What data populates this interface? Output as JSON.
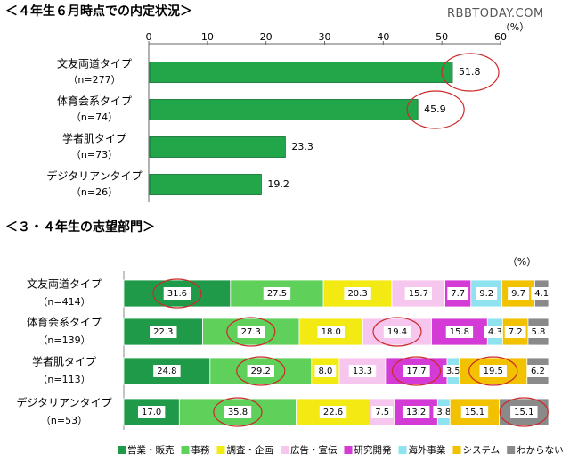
{
  "watermark": "RBBTODAY.COM",
  "chart_data": [
    {
      "type": "bar",
      "orientation": "horizontal",
      "title": "＜４年生６月時点での内定状況＞",
      "unit_label": "（%）",
      "xlim": [
        0,
        60
      ],
      "ticks": [
        0,
        10,
        20,
        30,
        40,
        50,
        60
      ],
      "grid": false,
      "bar_color": "#22a64a",
      "categories": [
        {
          "name": "文友両道タイプ",
          "n": "（n=277）"
        },
        {
          "name": "体育会系タイプ",
          "n": "（n=74）"
        },
        {
          "name": "学者肌タイプ",
          "n": "（n=73）"
        },
        {
          "name": "デジタリアンタイプ",
          "n": "（n=26）"
        }
      ],
      "values": [
        51.8,
        45.9,
        23.3,
        19.2
      ],
      "value_labels": [
        "51.8",
        "45.9",
        "23.3",
        "19.2"
      ],
      "circled": [
        0,
        1
      ]
    },
    {
      "type": "bar",
      "orientation": "horizontal",
      "stacked": true,
      "percent": true,
      "title": "＜３・４年生の志望部門＞",
      "unit_label": "（%）",
      "legend_position": "bottom",
      "categories": [
        {
          "name": "文友両道タイプ",
          "n": "（n=414）"
        },
        {
          "name": "体育会系タイプ",
          "n": "（n=139）"
        },
        {
          "name": "学者肌タイプ",
          "n": "（n=113）"
        },
        {
          "name": "デジタリアンタイプ",
          "n": "（n=53）"
        }
      ],
      "series": [
        {
          "name": "営業・販売",
          "color": "#1e9a48",
          "values": [
            31.6,
            22.3,
            24.8,
            17.0
          ],
          "labels": [
            "31.6",
            "22.3",
            "24.8",
            "17.0"
          ]
        },
        {
          "name": "事務",
          "color": "#5fd05a",
          "values": [
            27.5,
            27.3,
            29.2,
            35.8
          ],
          "labels": [
            "27.5",
            "27.3",
            "29.2",
            "35.8"
          ]
        },
        {
          "name": "調査・企画",
          "color": "#f2ea12",
          "values": [
            20.3,
            18.0,
            8.0,
            22.6
          ],
          "labels": [
            "20.3",
            "18.0",
            "8.0",
            "22.6"
          ]
        },
        {
          "name": "広告・宣伝",
          "color": "#f7c6ee",
          "values": [
            15.7,
            19.4,
            13.3,
            7.5
          ],
          "labels": [
            "15.7",
            "19.4",
            "13.3",
            "7.5"
          ]
        },
        {
          "name": "研究開発",
          "color": "#d33ad6",
          "values": [
            7.7,
            15.8,
            17.7,
            13.2
          ],
          "labels": [
            "7.7",
            "15.8",
            "17.7",
            "13.2"
          ]
        },
        {
          "name": "海外事業",
          "color": "#8fe3f0",
          "values": [
            9.2,
            4.3,
            3.5,
            3.8
          ],
          "labels": [
            "9.2",
            "4.3",
            "3.5",
            "3.8"
          ]
        },
        {
          "name": "システム",
          "color": "#f2c200",
          "values": [
            9.7,
            7.2,
            19.5,
            15.1
          ],
          "labels": [
            "9.7",
            "7.2",
            "19.5",
            "15.1"
          ]
        },
        {
          "name": "わからない",
          "color": "#8a8a8a",
          "values": [
            4.1,
            5.8,
            6.2,
            15.1
          ],
          "labels": [
            "4.1",
            "5.8",
            "6.2",
            "15.1"
          ]
        }
      ],
      "circled": [
        [
          0,
          0
        ],
        [
          1,
          1
        ],
        [
          1,
          3
        ],
        [
          2,
          1
        ],
        [
          2,
          4
        ],
        [
          2,
          6
        ],
        [
          3,
          1
        ],
        [
          3,
          7
        ]
      ]
    }
  ]
}
